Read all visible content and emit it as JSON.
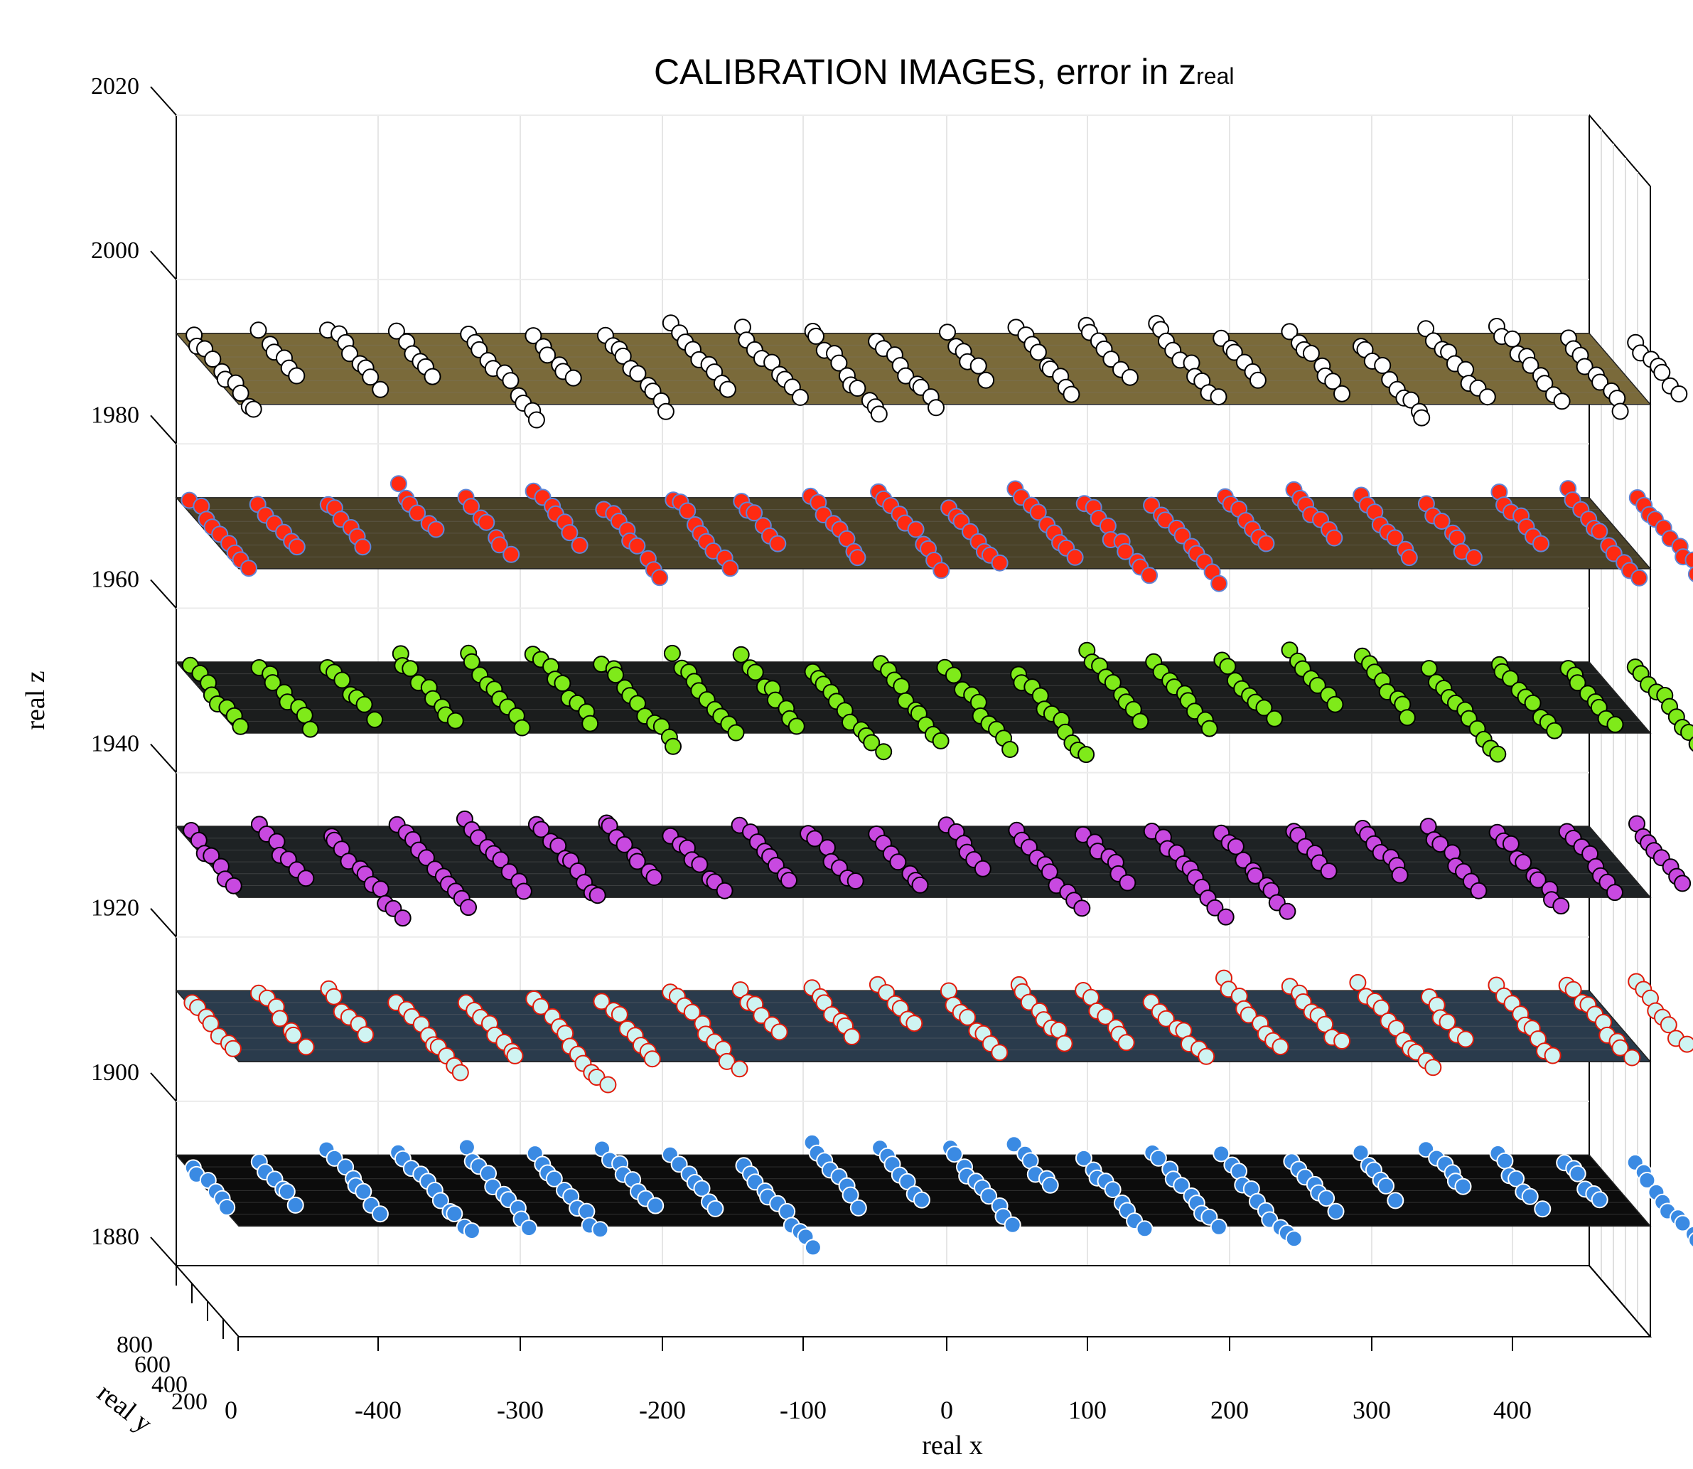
{
  "chart_data": {
    "type": "scatter",
    "title": "CALIBRATION IMAGES, error in z",
    "title_sub": "real",
    "xlabel": "real x",
    "ylabel": "real y",
    "zlabel": "real z",
    "x_ticks": [
      "0",
      "-400",
      "-300",
      "-200",
      "-100",
      "0",
      "100",
      "200",
      "300",
      "400"
    ],
    "y_ticks": [
      "200",
      "400",
      "600",
      "800"
    ],
    "z_ticks": [
      "1880",
      "1900",
      "1920",
      "1940",
      "1960",
      "1980",
      "2000",
      "2020"
    ],
    "xlim": [
      -500,
      500
    ],
    "zlim": [
      1880,
      2020
    ],
    "series": [
      {
        "z": 1990,
        "color": "#ffffff",
        "edge": "#000000",
        "plane": "#7a6a3a"
      },
      {
        "z": 1970,
        "color": "#ff2a12",
        "edge": "#5e86d8",
        "plane": "#4a4228"
      },
      {
        "z": 1950,
        "color": "#7fea1a",
        "edge": "#000000",
        "plane": "#1b1d1d"
      },
      {
        "z": 1930,
        "color": "#c849e0",
        "edge": "#000000",
        "plane": "#1e2224"
      },
      {
        "z": 1910,
        "color": "#cff4f2",
        "edge": "#e11a0a",
        "plane": "#2a3b4c"
      },
      {
        "z": 1890,
        "color": "#3a8ae3",
        "edge": "#ffffff",
        "plane": "#0c0c0c"
      }
    ]
  }
}
